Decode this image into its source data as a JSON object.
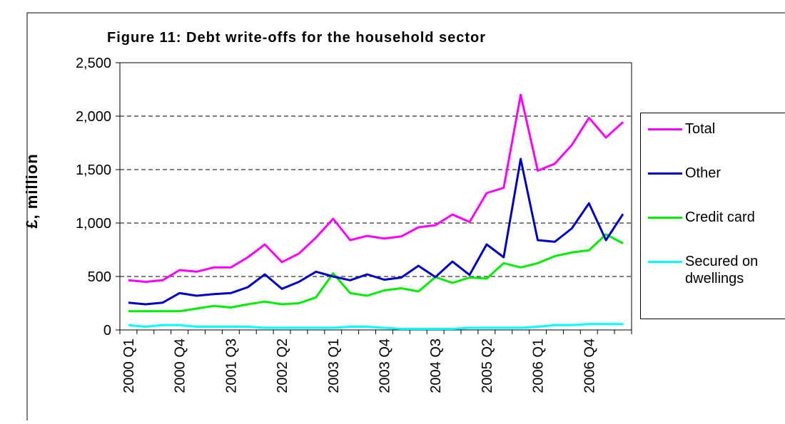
{
  "chart_data": {
    "type": "line",
    "title": "Figure 11: Debt write-offs for the household sector",
    "ylabel": "£, million",
    "xlabel": "",
    "ylim": [
      0,
      2500
    ],
    "yticks": [
      "0",
      "500",
      "1,000",
      "1,500",
      "2,000",
      "2,500"
    ],
    "ytick_values": [
      0,
      500,
      1000,
      1500,
      2000,
      2500
    ],
    "grid": "horizontal dashed",
    "legend_position": "right",
    "x": [
      "2000 Q1",
      "2000 Q2",
      "2000 Q3",
      "2000 Q4",
      "2001 Q1",
      "2001 Q2",
      "2001 Q3",
      "2001 Q4",
      "2002 Q1",
      "2002 Q2",
      "2002 Q3",
      "2002 Q4",
      "2003 Q1",
      "2003 Q2",
      "2003 Q3",
      "2003 Q4",
      "2004 Q1",
      "2004 Q2",
      "2004 Q3",
      "2004 Q4",
      "2005 Q1",
      "2005 Q2",
      "2005 Q3",
      "2005 Q4",
      "2006 Q1",
      "2006 Q2",
      "2006 Q3",
      "2006 Q4",
      "2007 Q1",
      "2007 Q2"
    ],
    "xtick_labels": [
      "2000 Q1",
      "2000 Q4",
      "2001 Q3",
      "2002 Q2",
      "2003 Q1",
      "2003 Q4",
      "2004 Q3",
      "2005 Q2",
      "2006 Q1",
      "2006 Q4"
    ],
    "xtick_indices": [
      0,
      3,
      6,
      9,
      12,
      15,
      18,
      21,
      24,
      27
    ],
    "series": [
      {
        "name": "Total",
        "color": "#ff00ff",
        "values": [
          465,
          450,
          465,
          560,
          545,
          585,
          585,
          680,
          800,
          635,
          715,
          865,
          1040,
          840,
          880,
          855,
          875,
          960,
          980,
          1080,
          1010,
          1280,
          1330,
          2200,
          1490,
          1555,
          1730,
          1985,
          1800,
          1945
        ]
      },
      {
        "name": "Other",
        "color": "#0000cc",
        "values": [
          255,
          240,
          255,
          345,
          320,
          335,
          345,
          400,
          520,
          385,
          450,
          545,
          500,
          465,
          520,
          470,
          490,
          600,
          495,
          640,
          515,
          800,
          680,
          1600,
          840,
          825,
          950,
          1185,
          840,
          1085
        ]
      },
      {
        "name": "Credit card",
        "color": "#00ee00",
        "values": [
          175,
          175,
          175,
          175,
          200,
          225,
          210,
          240,
          265,
          240,
          250,
          305,
          530,
          345,
          320,
          370,
          390,
          360,
          495,
          440,
          490,
          480,
          625,
          585,
          625,
          690,
          725,
          745,
          895,
          810
        ]
      },
      {
        "name": "Secured on\ndwellings",
        "color": "#00ffff",
        "values": [
          45,
          30,
          45,
          45,
          30,
          30,
          30,
          30,
          20,
          20,
          20,
          20,
          20,
          30,
          30,
          20,
          10,
          10,
          10,
          10,
          20,
          20,
          20,
          20,
          30,
          45,
          45,
          55,
          55,
          55
        ]
      }
    ]
  }
}
